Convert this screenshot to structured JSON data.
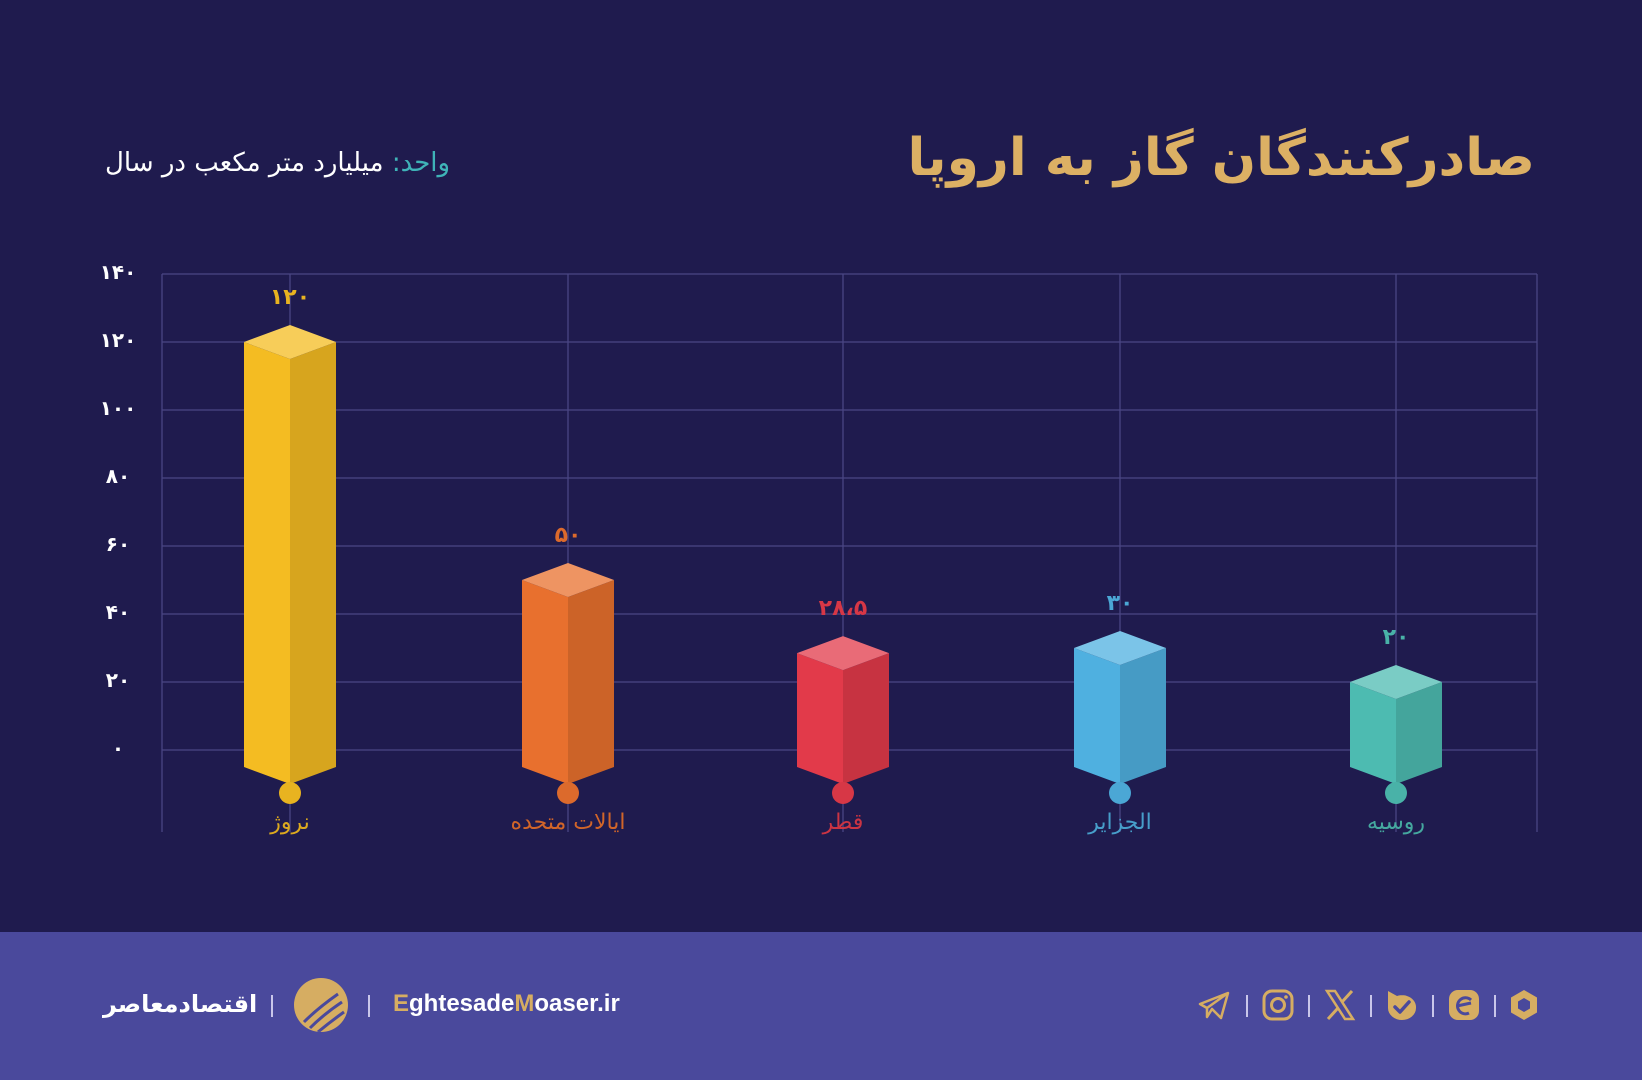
{
  "header": {
    "title": "صادرکنندگان گاز به اروپا",
    "unit_key": "واحد:",
    "unit_value": "میلیارد متر مکعب در سال"
  },
  "chart_data": {
    "type": "bar",
    "title": "صادرکنندگان گاز به اروپا",
    "ylabel": "میلیارد متر مکعب در سال",
    "xlabel": "",
    "categories": [
      "نروژ",
      "ایالات متحده",
      "قطر",
      "الجزایر",
      "روسیه"
    ],
    "values": [
      120,
      50,
      28.5,
      30,
      20
    ],
    "value_labels": [
      "۱۲۰",
      "۵۰",
      "۲۸،۵",
      "۳۰",
      "۲۰"
    ],
    "colors": [
      "#f4bc22",
      "#e8702e",
      "#e23a4a",
      "#4fb0e0",
      "#4dbbb1"
    ],
    "ylim": [
      0,
      140
    ],
    "yticks": [
      0,
      20,
      40,
      60,
      80,
      100,
      120,
      140
    ],
    "ytick_labels": [
      "۰",
      "۲۰",
      "۴۰",
      "۶۰",
      "۸۰",
      "۱۰۰",
      "۱۲۰",
      "۱۴۰"
    ],
    "grid": true,
    "legend": "none",
    "style": "3d-isometric-columns"
  },
  "footer": {
    "brand_fa": "اقتصادمعاصر",
    "site_parts": [
      "E",
      "ghtesade",
      "M",
      "oaser.ir"
    ],
    "social_icons": [
      "telegram-icon",
      "instagram-icon",
      "x-icon",
      "bale-icon",
      "eitaa-icon",
      "rubika-icon"
    ],
    "accent": "#d6ad62"
  }
}
